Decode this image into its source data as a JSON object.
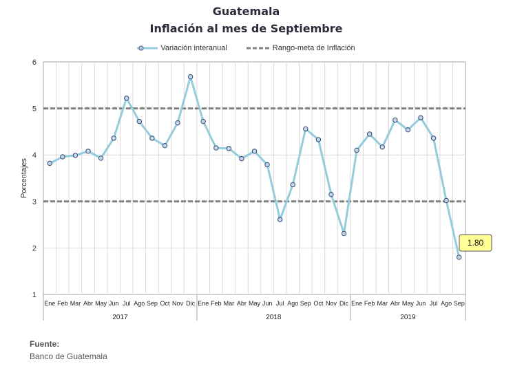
{
  "header": {
    "title_line1": "Guatemala",
    "title_line2": "Inflación al mes de Septiembre"
  },
  "legend": {
    "series_label": "Variación interanual",
    "band_label": "Rango-meta de Inflación"
  },
  "source": {
    "label": "Fuente:",
    "value": "Banco de Guatemala"
  },
  "chart_data": {
    "type": "line",
    "ylabel": "Porcentajes",
    "ylim": [
      1,
      6
    ],
    "yticks": [
      1,
      2,
      3,
      4,
      5,
      6
    ],
    "grid": true,
    "legend_position": "top-center",
    "categories": [
      "Ene",
      "Feb",
      "Mar",
      "Abr",
      "May",
      "Jun",
      "Jul",
      "Ago",
      "Sep",
      "Oct",
      "Nov",
      "Dic",
      "Ene",
      "Feb",
      "Mar",
      "Abr",
      "May",
      "Jun",
      "Jul",
      "Ago",
      "Sep",
      "Oct",
      "Nov",
      "Dic",
      "Ene",
      "Feb",
      "Mar",
      "Abr",
      "May",
      "Jun",
      "Jul",
      "Ago",
      "Sep"
    ],
    "years": [
      {
        "label": "2017",
        "count": 12
      },
      {
        "label": "2018",
        "count": 12
      },
      {
        "label": "2019",
        "count": 9
      }
    ],
    "series": [
      {
        "name": "Variación interanual",
        "color": "#93cddd",
        "marker_fill": "#c9d6ea",
        "marker_stroke": "#2e4a73",
        "values": [
          3.82,
          3.96,
          3.99,
          4.08,
          3.93,
          4.36,
          5.22,
          4.72,
          4.36,
          4.2,
          4.69,
          5.68,
          4.72,
          4.15,
          4.14,
          3.92,
          4.08,
          3.79,
          2.61,
          3.36,
          4.56,
          4.33,
          3.15,
          2.31,
          4.1,
          4.45,
          4.17,
          4.75,
          4.54,
          4.8,
          4.36,
          3.02,
          1.8
        ]
      }
    ],
    "target_range": {
      "name": "Rango-meta de Inflación",
      "lower": 3,
      "upper": 5,
      "color": "#808080"
    },
    "last_label": "1.80",
    "last_label_bg": "#ffff99"
  }
}
